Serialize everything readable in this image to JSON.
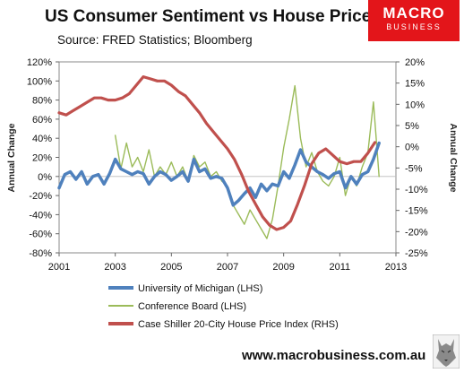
{
  "header": {
    "title": "US Consumer Sentiment vs House Prices",
    "subtitle": "Source: FRED Statistics; Bloomberg"
  },
  "logo": {
    "line1": "MACRO",
    "line2": "BUSINESS"
  },
  "footer": {
    "url": "www.macrobusiness.com.au"
  },
  "colors": {
    "michigan": "#4f81bd",
    "conference": "#9bbb59",
    "caseshiller": "#c0504d",
    "brand": "#e3151a"
  },
  "chart_data": {
    "type": "line",
    "title": "US Consumer Sentiment vs House Prices",
    "subtitle": "Source: FRED Statistics; Bloomberg",
    "ylabel_left": "Annual Change",
    "ylabel_right": "Annual Change",
    "xlim": [
      2001,
      2013
    ],
    "ylim_left": [
      -80,
      120
    ],
    "ylim_right": [
      -25,
      20
    ],
    "xticks": [
      "2001",
      "2003",
      "2005",
      "2007",
      "2009",
      "2011",
      "2013"
    ],
    "yticks_left": [
      "120%",
      "100%",
      "80%",
      "60%",
      "40%",
      "20%",
      "0%",
      "-20%",
      "-40%",
      "-60%",
      "-80%"
    ],
    "yticks_right": [
      "20%",
      "15%",
      "10%",
      "5%",
      "0%",
      "-5%",
      "-10%",
      "-15%",
      "-20%",
      "-25%"
    ],
    "grid": false,
    "legend_position": "bottom",
    "series": [
      {
        "name": "University of Michigan (LHS)",
        "axis": "left",
        "x": [
          2001.0,
          2001.2,
          2001.4,
          2001.6,
          2001.8,
          2002.0,
          2002.2,
          2002.4,
          2002.6,
          2002.8,
          2003.0,
          2003.2,
          2003.4,
          2003.6,
          2003.8,
          2004.0,
          2004.2,
          2004.4,
          2004.6,
          2004.8,
          2005.0,
          2005.2,
          2005.4,
          2005.6,
          2005.8,
          2006.0,
          2006.2,
          2006.4,
          2006.6,
          2006.8,
          2007.0,
          2007.2,
          2007.4,
          2007.6,
          2007.8,
          2008.0,
          2008.2,
          2008.4,
          2008.6,
          2008.8,
          2009.0,
          2009.2,
          2009.4,
          2009.6,
          2009.8,
          2010.0,
          2010.2,
          2010.4,
          2010.6,
          2010.8,
          2011.0,
          2011.2,
          2011.4,
          2011.6,
          2011.8,
          2012.0,
          2012.2,
          2012.4
        ],
        "values": [
          -12,
          2,
          5,
          -3,
          5,
          -8,
          0,
          2,
          -8,
          3,
          18,
          8,
          5,
          2,
          5,
          3,
          -8,
          0,
          5,
          2,
          -4,
          0,
          5,
          -5,
          18,
          5,
          8,
          -2,
          0,
          -2,
          -12,
          -30,
          -25,
          -18,
          -12,
          -22,
          -8,
          -15,
          -8,
          -10,
          5,
          -2,
          12,
          28,
          15,
          10,
          5,
          2,
          -2,
          3,
          5,
          -12,
          0,
          -8,
          2,
          5,
          18,
          35
        ]
      },
      {
        "name": "Conference Board (LHS)",
        "axis": "left",
        "x": [
          2003.0,
          2003.2,
          2003.4,
          2003.6,
          2003.8,
          2004.0,
          2004.2,
          2004.4,
          2004.6,
          2004.8,
          2005.0,
          2005.2,
          2005.4,
          2005.6,
          2005.8,
          2006.0,
          2006.2,
          2006.4,
          2006.6,
          2006.8,
          2007.0,
          2007.2,
          2007.4,
          2007.6,
          2007.8,
          2008.0,
          2008.2,
          2008.4,
          2008.6,
          2008.8,
          2009.0,
          2009.2,
          2009.4,
          2009.6,
          2009.8,
          2010.0,
          2010.2,
          2010.4,
          2010.6,
          2010.8,
          2011.0,
          2011.2,
          2011.4,
          2011.6,
          2011.8,
          2012.0,
          2012.2,
          2012.4
        ],
        "values": [
          43,
          8,
          35,
          10,
          20,
          5,
          28,
          0,
          10,
          2,
          15,
          0,
          10,
          -5,
          22,
          10,
          15,
          0,
          5,
          -5,
          -10,
          -30,
          -40,
          -50,
          -35,
          -45,
          -55,
          -65,
          -45,
          -10,
          30,
          60,
          95,
          40,
          10,
          25,
          5,
          -5,
          -10,
          0,
          20,
          -20,
          0,
          -10,
          10,
          25,
          78,
          0
        ]
      },
      {
        "name": "Case Shiller 20-City House Price Index (RHS)",
        "axis": "right",
        "x": [
          2001.0,
          2001.25,
          2001.5,
          2001.75,
          2002.0,
          2002.25,
          2002.5,
          2002.75,
          2003.0,
          2003.25,
          2003.5,
          2003.75,
          2004.0,
          2004.25,
          2004.5,
          2004.75,
          2005.0,
          2005.25,
          2005.5,
          2005.75,
          2006.0,
          2006.25,
          2006.5,
          2006.75,
          2007.0,
          2007.25,
          2007.5,
          2007.75,
          2008.0,
          2008.25,
          2008.5,
          2008.75,
          2009.0,
          2009.25,
          2009.5,
          2009.75,
          2010.0,
          2010.25,
          2010.5,
          2010.75,
          2011.0,
          2011.25,
          2011.5,
          2011.75,
          2012.0,
          2012.25
        ],
        "values": [
          8,
          7.5,
          8.5,
          9.5,
          10.5,
          11.5,
          11.5,
          11,
          11,
          11.5,
          12.5,
          14.5,
          16.5,
          16,
          15.5,
          15.5,
          14.5,
          13,
          12,
          10,
          8,
          5.5,
          3.5,
          1.5,
          -0.5,
          -3,
          -6.5,
          -10.5,
          -13.5,
          -16.5,
          -18.5,
          -19.5,
          -19,
          -17.5,
          -13.5,
          -9,
          -4,
          -1.5,
          -0.5,
          -2,
          -3.5,
          -4,
          -3.5,
          -3.5,
          -1.5,
          1
        ]
      }
    ]
  }
}
